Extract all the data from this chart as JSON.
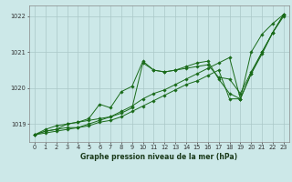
{
  "background_color": "#cce8e8",
  "grid_color": "#aac8c8",
  "line_color": "#1a6b1a",
  "xlabel": "Graphe pression niveau de la mer (hPa)",
  "xlim": [
    -0.5,
    23.5
  ],
  "ylim": [
    1018.5,
    1022.3
  ],
  "yticks": [
    1019,
    1020,
    1021,
    1022
  ],
  "xticks": [
    0,
    1,
    2,
    3,
    4,
    5,
    6,
    7,
    8,
    9,
    10,
    11,
    12,
    13,
    14,
    15,
    16,
    17,
    18,
    19,
    20,
    21,
    22,
    23
  ],
  "series": [
    [
      1018.7,
      1018.8,
      1018.85,
      1018.9,
      1018.9,
      1019.0,
      1019.1,
      1019.2,
      1019.35,
      1019.5,
      1019.7,
      1019.85,
      1019.95,
      1020.1,
      1020.25,
      1020.4,
      1020.55,
      1020.7,
      1020.85,
      1019.7,
      1021.0,
      1021.5,
      1021.8,
      1022.05
    ],
    [
      1018.7,
      1018.85,
      1018.95,
      1019.0,
      1019.05,
      1019.1,
      1019.15,
      1019.2,
      1019.3,
      1019.45,
      1020.7,
      1020.5,
      1020.45,
      1020.5,
      1020.55,
      1020.6,
      1020.65,
      1020.3,
      1020.25,
      1019.85,
      1020.45,
      1021.0,
      1021.55,
      1022.0
    ],
    [
      1018.7,
      1018.8,
      1018.85,
      1019.0,
      1019.05,
      1019.15,
      1019.55,
      1019.45,
      1019.9,
      1020.05,
      1020.75,
      1020.5,
      1020.45,
      1020.5,
      1020.6,
      1020.7,
      1020.75,
      1020.25,
      1019.85,
      1019.7,
      1020.4,
      1021.0,
      1021.55,
      1022.05
    ],
    [
      1018.7,
      1018.75,
      1018.8,
      1018.85,
      1018.9,
      1018.95,
      1019.05,
      1019.1,
      1019.2,
      1019.35,
      1019.5,
      1019.65,
      1019.8,
      1019.95,
      1020.1,
      1020.2,
      1020.35,
      1020.5,
      1019.7,
      1019.7,
      1020.4,
      1020.95,
      1021.55,
      1022.05
    ]
  ],
  "xlabel_fontsize": 5.5,
  "tick_fontsize": 4.8,
  "linewidth": 0.7,
  "markersize": 1.8
}
